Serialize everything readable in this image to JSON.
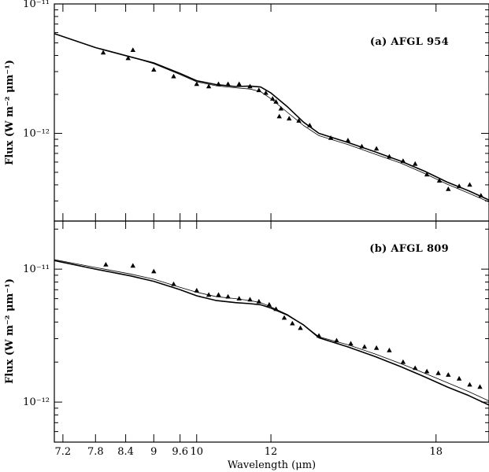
{
  "chart_data": [
    {
      "type": "line",
      "panel_label": "(a) AFGL 954",
      "ylabel": "Flux (W m⁻² μm⁻¹)",
      "xscale": "log",
      "yscale": "log",
      "xlim": [
        7.05,
        20.5
      ],
      "ylim": [
        2.1e-13,
        1e-11
      ],
      "ytick_labels": [
        {
          "value": 1e-11,
          "label": "10⁻¹¹"
        },
        {
          "value": 1e-12,
          "label": "10⁻¹²"
        }
      ],
      "legend": "none",
      "series": [
        {
          "style": "thick",
          "points": [
            [
              7.05,
              5.9e-12
            ],
            [
              7.8,
              4.6e-12
            ],
            [
              8.5,
              3.9e-12
            ],
            [
              9.0,
              3.5e-12
            ],
            [
              9.6,
              2.9e-12
            ],
            [
              10.0,
              2.55e-12
            ],
            [
              10.5,
              2.38e-12
            ],
            [
              11.0,
              2.3e-12
            ],
            [
              11.4,
              2.32e-12
            ],
            [
              11.7,
              2.28e-12
            ],
            [
              12.0,
              2.05e-12
            ],
            [
              12.5,
              1.6e-12
            ],
            [
              13.0,
              1.22e-12
            ],
            [
              13.5,
              1e-12
            ],
            [
              14.5,
              8.5e-13
            ],
            [
              15.5,
              7.2e-13
            ],
            [
              16.5,
              6.1e-13
            ],
            [
              17.5,
              5.1e-13
            ],
            [
              18.5,
              4.2e-13
            ],
            [
              19.5,
              3.6e-13
            ],
            [
              20.5,
              3.05e-13
            ]
          ]
        },
        {
          "style": "thin",
          "points": [
            [
              7.05,
              5.9e-12
            ],
            [
              7.8,
              4.6e-12
            ],
            [
              8.5,
              3.9e-12
            ],
            [
              9.0,
              3.45e-12
            ],
            [
              9.6,
              2.85e-12
            ],
            [
              10.0,
              2.5e-12
            ],
            [
              10.5,
              2.33e-12
            ],
            [
              11.0,
              2.25e-12
            ],
            [
              11.4,
              2.2e-12
            ],
            [
              11.7,
              2.1e-12
            ],
            [
              12.0,
              1.85e-12
            ],
            [
              12.5,
              1.45e-12
            ],
            [
              13.0,
              1.15e-12
            ],
            [
              13.5,
              9.6e-13
            ],
            [
              14.5,
              8.2e-13
            ],
            [
              15.5,
              6.9e-13
            ],
            [
              16.5,
              5.9e-13
            ],
            [
              17.5,
              4.9e-13
            ],
            [
              18.5,
              4.05e-13
            ],
            [
              19.5,
              3.45e-13
            ],
            [
              20.5,
              2.95e-13
            ]
          ]
        }
      ],
      "observations": [
        [
          7.95,
          4.2e-12
        ],
        [
          8.45,
          3.8e-12
        ],
        [
          8.55,
          4.4e-12
        ],
        [
          9.0,
          3.1e-12
        ],
        [
          9.45,
          2.75e-12
        ],
        [
          10.0,
          2.4e-12
        ],
        [
          10.3,
          2.3e-12
        ],
        [
          10.55,
          2.4e-12
        ],
        [
          10.8,
          2.4e-12
        ],
        [
          11.1,
          2.4e-12
        ],
        [
          11.4,
          2.3e-12
        ],
        [
          11.65,
          2.15e-12
        ],
        [
          11.85,
          2.05e-12
        ],
        [
          12.05,
          1.85e-12
        ],
        [
          12.15,
          1.75e-12
        ],
        [
          12.3,
          1.55e-12
        ],
        [
          12.25,
          1.35e-12
        ],
        [
          12.55,
          1.3e-12
        ],
        [
          12.85,
          1.25e-12
        ],
        [
          13.2,
          1.15e-12
        ],
        [
          13.9,
          9.2e-13
        ],
        [
          14.5,
          8.8e-13
        ],
        [
          15.0,
          7.9e-13
        ],
        [
          15.55,
          7.6e-13
        ],
        [
          16.05,
          6.6e-13
        ],
        [
          16.6,
          6.1e-13
        ],
        [
          17.1,
          5.8e-13
        ],
        [
          17.6,
          4.8e-13
        ],
        [
          18.15,
          4.3e-13
        ],
        [
          18.55,
          3.7e-13
        ],
        [
          19.05,
          3.9e-13
        ],
        [
          19.55,
          4e-13
        ],
        [
          20.1,
          3.3e-13
        ]
      ]
    },
    {
      "type": "line",
      "panel_label": "(b) AFGL 809",
      "xlabel": "Wavelength (μm)",
      "ylabel": "Flux (W m⁻² μm⁻¹)",
      "xscale": "log",
      "yscale": "log",
      "xlim": [
        7.05,
        20.5
      ],
      "ylim": [
        5e-13,
        2.3e-11
      ],
      "xtick_labels": [
        {
          "value": 7.2,
          "label": "7.2"
        },
        {
          "value": 7.8,
          "label": "7.8"
        },
        {
          "value": 8.4,
          "label": "8.4"
        },
        {
          "value": 9.0,
          "label": "9"
        },
        {
          "value": 9.6,
          "label": "9.6"
        },
        {
          "value": 10.0,
          "label": "10"
        },
        {
          "value": 12.0,
          "label": "12"
        },
        {
          "value": 18.0,
          "label": "18"
        }
      ],
      "ytick_labels": [
        {
          "value": 1e-11,
          "label": "10⁻¹¹"
        },
        {
          "value": 1e-12,
          "label": "10⁻¹²"
        }
      ],
      "legend": "none",
      "series": [
        {
          "style": "thick",
          "points": [
            [
              7.05,
              1.16e-11
            ],
            [
              7.8,
              1e-11
            ],
            [
              8.5,
              8.9e-12
            ],
            [
              9.0,
              8.1e-12
            ],
            [
              9.6,
              7e-12
            ],
            [
              10.0,
              6.3e-12
            ],
            [
              10.5,
              5.8e-12
            ],
            [
              11.0,
              5.6e-12
            ],
            [
              11.4,
              5.5e-12
            ],
            [
              11.7,
              5.4e-12
            ],
            [
              12.0,
              5.1e-12
            ],
            [
              12.5,
              4.5e-12
            ],
            [
              13.0,
              3.8e-12
            ],
            [
              13.5,
              3.05e-12
            ],
            [
              14.5,
              2.6e-12
            ],
            [
              15.5,
              2.2e-12
            ],
            [
              16.5,
              1.85e-12
            ],
            [
              17.5,
              1.55e-12
            ],
            [
              18.5,
              1.3e-12
            ],
            [
              19.5,
              1.12e-12
            ],
            [
              20.5,
              9.5e-13
            ]
          ]
        },
        {
          "style": "thin",
          "points": [
            [
              7.05,
              1.18e-11
            ],
            [
              7.8,
              1.03e-11
            ],
            [
              8.5,
              9.2e-12
            ],
            [
              9.0,
              8.4e-12
            ],
            [
              9.6,
              7.3e-12
            ],
            [
              10.0,
              6.7e-12
            ],
            [
              10.5,
              6.2e-12
            ],
            [
              11.0,
              6e-12
            ],
            [
              11.4,
              5.8e-12
            ],
            [
              11.7,
              5.6e-12
            ],
            [
              12.0,
              5.2e-12
            ],
            [
              12.5,
              4.55e-12
            ],
            [
              13.0,
              3.8e-12
            ],
            [
              13.5,
              3.1e-12
            ],
            [
              14.5,
              2.7e-12
            ],
            [
              15.5,
              2.3e-12
            ],
            [
              16.5,
              1.95e-12
            ],
            [
              17.5,
              1.65e-12
            ],
            [
              18.5,
              1.4e-12
            ],
            [
              19.5,
              1.2e-12
            ],
            [
              20.5,
              1.02e-12
            ]
          ]
        }
      ],
      "observations": [
        [
          8.0,
          1.08e-11
        ],
        [
          8.55,
          1.06e-11
        ],
        [
          9.0,
          9.6e-12
        ],
        [
          9.45,
          7.7e-12
        ],
        [
          10.0,
          6.9e-12
        ],
        [
          10.3,
          6.4e-12
        ],
        [
          10.55,
          6.4e-12
        ],
        [
          10.8,
          6.2e-12
        ],
        [
          11.1,
          6e-12
        ],
        [
          11.4,
          5.9e-12
        ],
        [
          11.65,
          5.7e-12
        ],
        [
          11.95,
          5.4e-12
        ],
        [
          12.15,
          5e-12
        ],
        [
          12.4,
          4.3e-12
        ],
        [
          12.65,
          3.9e-12
        ],
        [
          12.9,
          3.6e-12
        ],
        [
          13.5,
          3.15e-12
        ],
        [
          14.1,
          2.9e-12
        ],
        [
          14.6,
          2.75e-12
        ],
        [
          15.1,
          2.6e-12
        ],
        [
          15.55,
          2.55e-12
        ],
        [
          16.05,
          2.45e-12
        ],
        [
          16.6,
          2e-12
        ],
        [
          17.1,
          1.8e-12
        ],
        [
          17.6,
          1.7e-12
        ],
        [
          18.1,
          1.65e-12
        ],
        [
          18.55,
          1.6e-12
        ],
        [
          19.05,
          1.5e-12
        ],
        [
          19.55,
          1.35e-12
        ],
        [
          20.05,
          1.3e-12
        ]
      ]
    }
  ]
}
